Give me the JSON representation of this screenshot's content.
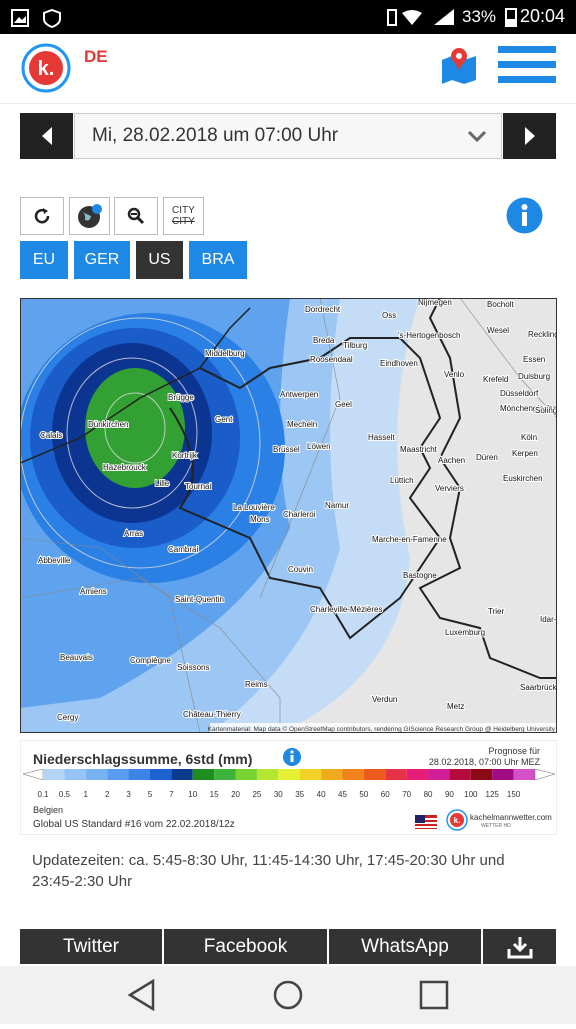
{
  "status_bar": {
    "battery": "33%",
    "time": "20:04"
  },
  "header": {
    "lang": "DE"
  },
  "date_selector": {
    "date": "Mi, 28.02.2018 um 07:00 Uhr"
  },
  "tools": {
    "city": "CITY",
    "city_struck": "CITY"
  },
  "regions": [
    "EU",
    "GER",
    "US",
    "BRA"
  ],
  "map": {
    "cities": [
      "Dordrecht",
      "Nijmegen",
      "Bocholt",
      "Oss",
      "'s-Hertogenbosch",
      "Wesel",
      "Recklinghausen",
      "Breda",
      "Tilburg",
      "Middelburg",
      "Roosendaal",
      "Eindhoven",
      "Essen",
      "Venlo",
      "Krefeld",
      "Duisburg",
      "Düsseldorf",
      "Brügge",
      "Antwerpen",
      "Geel",
      "Mönchengladbach",
      "Solingen",
      "Dünkirchen",
      "Gent",
      "Mecheln",
      "Hasselt",
      "Köln",
      "Calais",
      "Kortrijk",
      "Brüssel",
      "Löwen",
      "Maastricht",
      "Düren",
      "Aachen",
      "Kerpen",
      "Hazebrouck",
      "Lille",
      "Tournai",
      "Lüttich",
      "Euskirchen",
      "Verviers",
      "La Louvière",
      "Charleroi",
      "Namur",
      "Mons",
      "Arras",
      "Marche-en-Famenne",
      "Cambrai",
      "Abbeville",
      "Couvin",
      "Bastogne",
      "Amiens",
      "Saint-Quentin",
      "Charleville-Mézières",
      "Trier",
      "Idar-Oberstein",
      "Luxemburg",
      "Beauvais",
      "Compiègne",
      "Soissons",
      "Reims",
      "Saarbrücken",
      "Château-Thierry",
      "Verdun",
      "Metz",
      "Cergy"
    ],
    "credit": "Kartenmaterial: Map data © OpenStreetMap contributors, rendering GIScience Research Group @ Heidelberg University"
  },
  "legend": {
    "title": "Niederschlagssumme, 6std (mm)",
    "forecast_label": "Prognose für",
    "forecast_time": "28.02.2018, 07:00 Uhr MEZ",
    "scale": [
      "0.1",
      "0.5",
      "1",
      "2",
      "3",
      "5",
      "7",
      "10",
      "15",
      "20",
      "25",
      "30",
      "35",
      "40",
      "45",
      "50",
      "60",
      "70",
      "80",
      "90",
      "100",
      "125",
      "150"
    ],
    "region": "Belgien",
    "model": "Global US Standard #16 vom 22.02.2018/12z",
    "brand": "kachelmannwetter.com",
    "brand_sub": "WETTER HD"
  },
  "update_text": "Updatezeiten: ca. 5:45-8:30 Uhr, 11:45-14:30 Uhr, 17:45-20:30 Uhr und 23:45-2:30 Uhr",
  "share": [
    "Twitter",
    "Facebook",
    "WhatsApp"
  ]
}
